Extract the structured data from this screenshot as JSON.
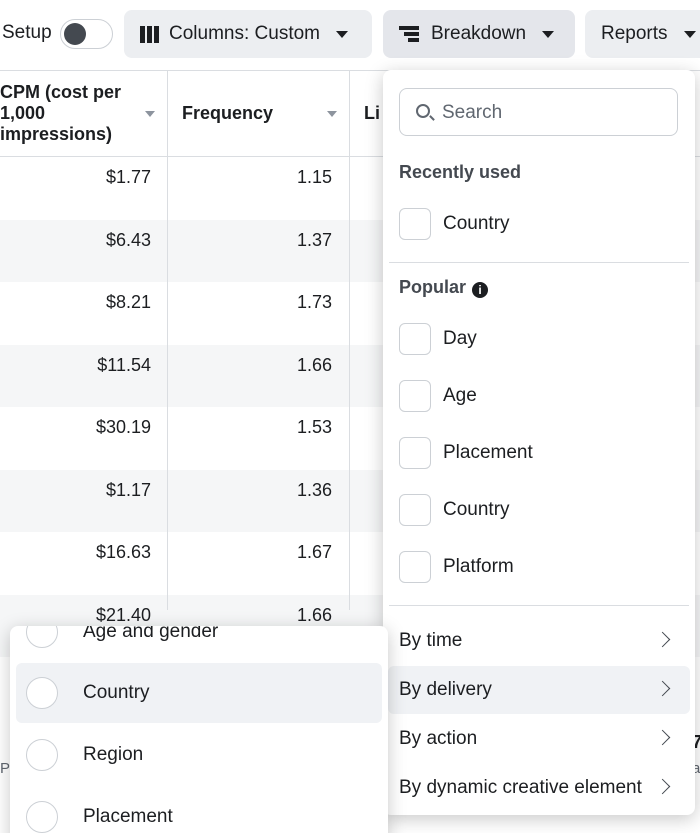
{
  "toolbar": {
    "setup_label": "Setup",
    "columns_label": "Columns: Custom",
    "breakdown_label": "Breakdown",
    "reports_label": "Reports"
  },
  "table": {
    "headers": [
      "CPM (cost per 1,000 impressions)",
      "Frequency",
      "Li"
    ],
    "rows": [
      {
        "cpm": "$1.77",
        "frequency": "1.15"
      },
      {
        "cpm": "$6.43",
        "frequency": "1.37"
      },
      {
        "cpm": "$8.21",
        "frequency": "1.73"
      },
      {
        "cpm": "$11.54",
        "frequency": "1.66"
      },
      {
        "cpm": "$30.19",
        "frequency": "1.53"
      },
      {
        "cpm": "$1.17",
        "frequency": "1.36"
      },
      {
        "cpm": "$16.63",
        "frequency": "1.67"
      },
      {
        "cpm": "$21.40",
        "frequency": "1.66"
      }
    ],
    "fragments": [
      "P",
      "7",
      "a"
    ]
  },
  "breakdown_menu": {
    "search_placeholder": "Search",
    "recently_used_title": "Recently used",
    "recently_used": [
      "Country"
    ],
    "popular_title": "Popular",
    "popular": [
      "Day",
      "Age",
      "Placement",
      "Country",
      "Platform"
    ],
    "categories": [
      {
        "label": "By time",
        "active": false
      },
      {
        "label": "By delivery",
        "active": true
      },
      {
        "label": "By action",
        "active": false
      },
      {
        "label": "By dynamic creative element",
        "active": false
      }
    ]
  },
  "delivery_submenu": {
    "items": [
      {
        "label": "Age and gender",
        "active": false
      },
      {
        "label": "Country",
        "active": true
      },
      {
        "label": "Region",
        "active": false
      },
      {
        "label": "Placement",
        "active": false
      }
    ]
  }
}
